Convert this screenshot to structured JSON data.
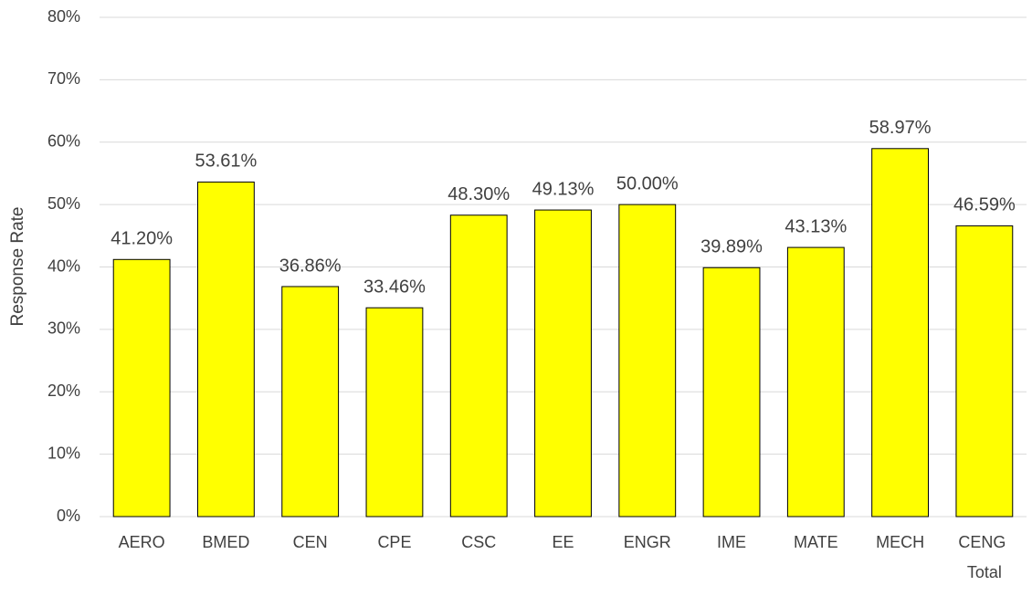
{
  "chart_data": {
    "type": "bar",
    "y_label": "Response Rate",
    "categories": [
      "AERO",
      "BMED",
      "CEN",
      "CPE",
      "CSC",
      "EE",
      "ENGR",
      "IME",
      "MATE",
      "MECH",
      "CENG Total"
    ],
    "values": [
      41.2,
      53.61,
      36.86,
      33.46,
      48.3,
      49.13,
      50.0,
      39.89,
      43.13,
      58.97,
      46.59
    ],
    "value_labels": [
      "41.20%",
      "53.61%",
      "36.86%",
      "33.46%",
      "48.30%",
      "49.13%",
      "50.00%",
      "39.89%",
      "43.13%",
      "58.97%",
      "46.59%"
    ],
    "color": "#ffff00",
    "ylim": [
      0,
      80
    ],
    "yticks": [
      {
        "value": 0,
        "label": "0%"
      },
      {
        "value": 10,
        "label": "10%"
      },
      {
        "value": 20,
        "label": "20%"
      },
      {
        "value": 30,
        "label": "30%"
      },
      {
        "value": 40,
        "label": "40%"
      },
      {
        "value": 50,
        "label": "50%"
      },
      {
        "value": 60,
        "label": "60%"
      },
      {
        "value": 70,
        "label": "70%"
      },
      {
        "value": 80,
        "label": "80%"
      }
    ],
    "grid": true
  }
}
